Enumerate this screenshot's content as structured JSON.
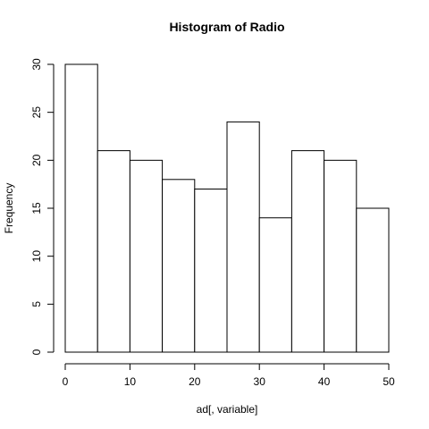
{
  "chart_data": {
    "type": "bar",
    "title": "Histogram of Radio",
    "xlabel": "ad[, variable]",
    "ylabel": "Frequency",
    "bins": [
      {
        "start": 0,
        "end": 5,
        "count": 30
      },
      {
        "start": 5,
        "end": 10,
        "count": 21
      },
      {
        "start": 10,
        "end": 15,
        "count": 20
      },
      {
        "start": 15,
        "end": 20,
        "count": 18
      },
      {
        "start": 20,
        "end": 25,
        "count": 17
      },
      {
        "start": 25,
        "end": 30,
        "count": 24
      },
      {
        "start": 30,
        "end": 35,
        "count": 14
      },
      {
        "start": 35,
        "end": 40,
        "count": 21
      },
      {
        "start": 40,
        "end": 45,
        "count": 20
      },
      {
        "start": 45,
        "end": 50,
        "count": 15
      }
    ],
    "xlim": [
      0,
      50
    ],
    "ylim": [
      0,
      30
    ],
    "xticks": [
      "0",
      "10",
      "20",
      "30",
      "40",
      "50"
    ],
    "yticks": [
      "0",
      "5",
      "10",
      "15",
      "20",
      "25",
      "30"
    ],
    "grid": false
  }
}
